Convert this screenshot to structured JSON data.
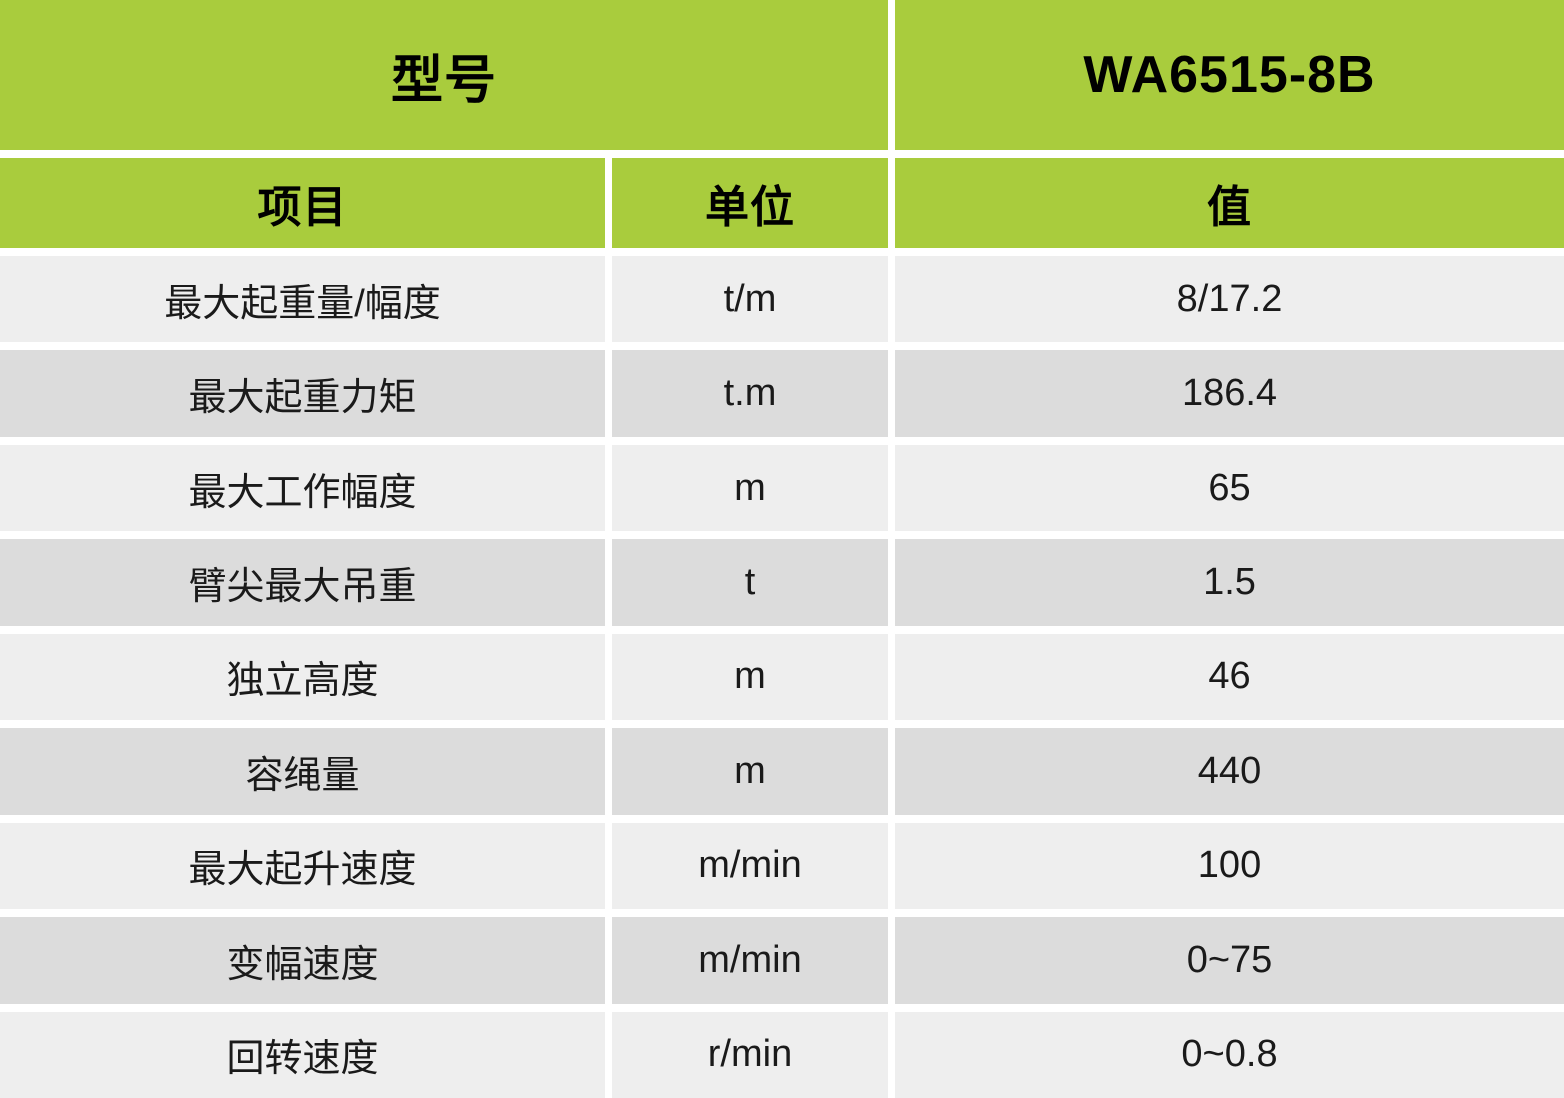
{
  "table": {
    "model": {
      "label": "型号",
      "value": "WA6515-8B"
    },
    "column_headers": [
      "项目",
      "单位",
      "值"
    ],
    "rows": [
      {
        "item": "最大起重量/幅度",
        "unit": "t/m",
        "value": "8/17.2"
      },
      {
        "item": "最大起重力矩",
        "unit": "t.m",
        "value": "186.4"
      },
      {
        "item": "最大工作幅度",
        "unit": "m",
        "value": "65"
      },
      {
        "item": "臂尖最大吊重",
        "unit": "t",
        "value": "1.5"
      },
      {
        "item": "独立高度",
        "unit": "m",
        "value": "46"
      },
      {
        "item": "容绳量",
        "unit": "m",
        "value": "440"
      },
      {
        "item": "最大起升速度",
        "unit": "m/min",
        "value": "100"
      },
      {
        "item": "变幅速度",
        "unit": "m/min",
        "value": "0~75"
      },
      {
        "item": "回转速度",
        "unit": "r/min",
        "value": "0~0.8"
      }
    ],
    "colors": {
      "header_green": "#a9cc3d",
      "row_light": "#eeeeee",
      "row_dark": "#dcdcdc",
      "gutter_white": "#ffffff",
      "text": "#1a1a1a"
    }
  }
}
